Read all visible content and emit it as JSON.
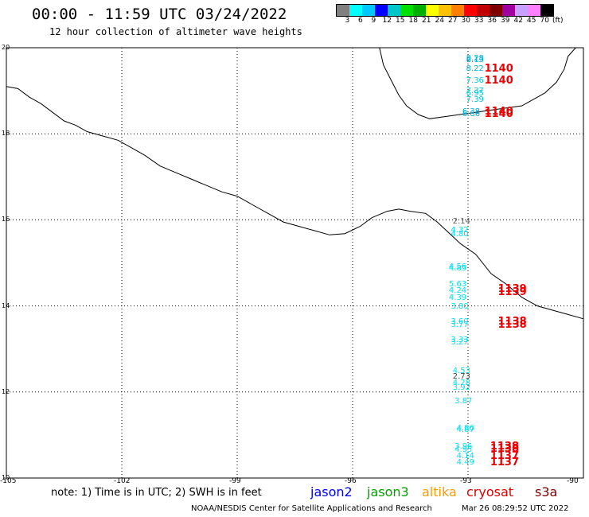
{
  "header": {
    "title": "00:00 - 11:59 UTC 03/24/2022",
    "subtitle": "12 hour collection of altimeter wave heights"
  },
  "colorbar": {
    "colors": [
      "#808080",
      "#00ffff",
      "#00c8ff",
      "#0000ff",
      "#00c8c8",
      "#00e000",
      "#00b000",
      "#ffff00",
      "#ffc000",
      "#ff8000",
      "#ff0000",
      "#c00000",
      "#800000",
      "#a000a0",
      "#c8a0ff",
      "#ff80ff",
      "#000000"
    ],
    "labels": [
      "3",
      "6",
      "9",
      "12",
      "15",
      "18",
      "21",
      "24",
      "27",
      "30",
      "33",
      "36",
      "39",
      "42",
      "45",
      "70",
      "(ft)"
    ]
  },
  "map": {
    "lon_min": -105,
    "lon_max": -90,
    "lat_min": 10,
    "lat_max": 20,
    "y_ticks": [
      "20",
      "18",
      "16",
      "14",
      "12",
      "10"
    ],
    "x_ticks": [
      "-105",
      "-102",
      "-99",
      "-96",
      "-93",
      "-90"
    ],
    "coast_color": "#000000",
    "grid_color": "#000000"
  },
  "observations": [
    {
      "value": "8.28",
      "lon": -92.8,
      "lat": 19.75,
      "color": "#00b0d8"
    },
    {
      "value": "8.13",
      "lon": -92.8,
      "lat": 19.7,
      "color": "#00b0d8"
    },
    {
      "value": "8.22",
      "lon": -92.8,
      "lat": 19.5,
      "color": "#00b0d8"
    },
    {
      "value": "7.36",
      "lon": -92.8,
      "lat": 19.22,
      "color": "#00c8d8"
    },
    {
      "value": "7.37",
      "lon": -92.8,
      "lat": 18.98,
      "color": "#00c8d8"
    },
    {
      "value": "6.95",
      "lon": -92.8,
      "lat": 18.93,
      "color": "#00c8d8"
    },
    {
      "value": "7.39",
      "lon": -92.8,
      "lat": 18.78,
      "color": "#00c8d8"
    },
    {
      "value": "6.38",
      "lon": -92.9,
      "lat": 18.5,
      "color": "#00b0d8"
    },
    {
      "value": "6.86",
      "lon": -92.9,
      "lat": 18.45,
      "color": "#00b0d8"
    },
    {
      "value": "2.14",
      "lon": -93.15,
      "lat": 15.95,
      "color": "#606060"
    },
    {
      "value": "4.32",
      "lon": -93.2,
      "lat": 15.75,
      "color": "#00e0f0"
    },
    {
      "value": "4.80",
      "lon": -93.2,
      "lat": 15.65,
      "color": "#00e0f0"
    },
    {
      "value": "4.56",
      "lon": -93.25,
      "lat": 14.9,
      "color": "#00e0f0"
    },
    {
      "value": "4.85",
      "lon": -93.25,
      "lat": 14.86,
      "color": "#00e0f0"
    },
    {
      "value": "5.63",
      "lon": -93.25,
      "lat": 14.5,
      "color": "#00e0f0"
    },
    {
      "value": "4.24",
      "lon": -93.25,
      "lat": 14.35,
      "color": "#00e0f0"
    },
    {
      "value": "4.39",
      "lon": -93.25,
      "lat": 14.18,
      "color": "#00e0f0"
    },
    {
      "value": "3.80",
      "lon": -93.2,
      "lat": 13.98,
      "color": "#00e0f0"
    },
    {
      "value": "3.60",
      "lon": -93.2,
      "lat": 13.62,
      "color": "#00e0f0"
    },
    {
      "value": "3.77",
      "lon": -93.2,
      "lat": 13.55,
      "color": "#00e0f0"
    },
    {
      "value": "3.33",
      "lon": -93.2,
      "lat": 13.2,
      "color": "#00e0f0"
    },
    {
      "value": "3.27",
      "lon": -93.2,
      "lat": 13.15,
      "color": "#00e0f0"
    },
    {
      "value": "4.53",
      "lon": -93.15,
      "lat": 12.48,
      "color": "#00e0f0"
    },
    {
      "value": "2.73",
      "lon": -93.15,
      "lat": 12.35,
      "color": "#404040"
    },
    {
      "value": "4.28",
      "lon": -93.15,
      "lat": 12.2,
      "color": "#00e0f0"
    },
    {
      "value": "3.92",
      "lon": -93.15,
      "lat": 12.08,
      "color": "#00e0f0"
    },
    {
      "value": "3.87",
      "lon": -93.1,
      "lat": 11.78,
      "color": "#00e0f0"
    },
    {
      "value": "4.86",
      "lon": -93.05,
      "lat": 11.15,
      "color": "#00e0f0"
    },
    {
      "value": "4.87",
      "lon": -93.05,
      "lat": 11.1,
      "color": "#00e0f0"
    },
    {
      "value": "3.96",
      "lon": -93.1,
      "lat": 10.72,
      "color": "#00e0f0"
    },
    {
      "value": "4.95",
      "lon": -93.1,
      "lat": 10.65,
      "color": "#00e0f0"
    },
    {
      "value": "4.14",
      "lon": -93.05,
      "lat": 10.5,
      "color": "#00e0f0"
    },
    {
      "value": "4.49",
      "lon": -93.05,
      "lat": 10.35,
      "color": "#00e0f0"
    }
  ],
  "passes": [
    {
      "value": "1140",
      "lon": -92.45,
      "lat": 19.5
    },
    {
      "value": "1140",
      "lon": -92.45,
      "lat": 19.22
    },
    {
      "value": "1140",
      "lon": -92.45,
      "lat": 18.5
    },
    {
      "value": "1140",
      "lon": -92.45,
      "lat": 18.45
    },
    {
      "value": "1139",
      "lon": -92.1,
      "lat": 14.38
    },
    {
      "value": "1139",
      "lon": -92.1,
      "lat": 14.3
    },
    {
      "value": "1138",
      "lon": -92.1,
      "lat": 13.62
    },
    {
      "value": "1138",
      "lon": -92.1,
      "lat": 13.55
    },
    {
      "value": "1138",
      "lon": -92.3,
      "lat": 10.73
    },
    {
      "value": "1138",
      "lon": -92.3,
      "lat": 10.67
    },
    {
      "value": "1137",
      "lon": -92.3,
      "lat": 10.5
    },
    {
      "value": "1137",
      "lon": -92.3,
      "lat": 10.35
    }
  ],
  "note": "note: 1) Time is in UTC; 2) SWH is in feet",
  "missions": [
    {
      "name": "jason2",
      "color": "#0000ff"
    },
    {
      "name": "jason3",
      "color": "#00a000"
    },
    {
      "name": "altika",
      "color": "#ff9900"
    },
    {
      "name": "cryosat",
      "color": "#dd0000"
    },
    {
      "name": "s3a",
      "color": "#800000"
    }
  ],
  "footer": {
    "credit": "NOAA/NESDIS Center for Satellite Applications and Research",
    "timestamp": "Mar 26 08:29:52 UTC 2022"
  }
}
